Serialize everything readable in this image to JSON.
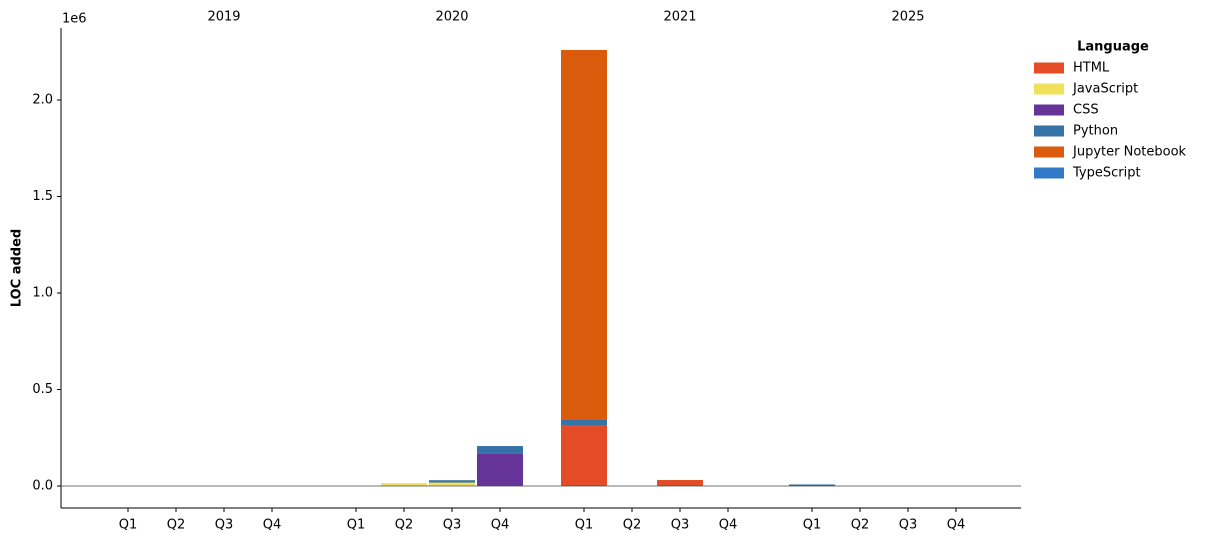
{
  "chart_data": {
    "type": "stacked_bar",
    "ylabel": "LOC added",
    "y_offset_label": "1e6",
    "categories": [
      "Q1",
      "Q2",
      "Q3",
      "Q4",
      "Q1",
      "Q2",
      "Q3",
      "Q4",
      "Q1",
      "Q2",
      "Q3",
      "Q4",
      "Q1",
      "Q2",
      "Q3",
      "Q4"
    ],
    "groups": [
      "2019",
      "2020",
      "2021",
      "2025"
    ],
    "legend_title": "Language",
    "legend_position": "outside-right",
    "series": [
      {
        "name": "HTML",
        "color": "#e34c26",
        "values": [
          0,
          0,
          0,
          0,
          0,
          0,
          0,
          0,
          316000,
          0,
          31000,
          0,
          0,
          0,
          0,
          0
        ]
      },
      {
        "name": "JavaScript",
        "color": "#f1e05a",
        "values": [
          0,
          0,
          0,
          0,
          0,
          15000,
          18000,
          0,
          0,
          0,
          0,
          0,
          0,
          0,
          0,
          0
        ]
      },
      {
        "name": "CSS",
        "color": "#663399",
        "values": [
          0,
          0,
          0,
          0,
          0,
          0,
          0,
          166000,
          0,
          0,
          0,
          0,
          0,
          0,
          0,
          0
        ]
      },
      {
        "name": "Python",
        "color": "#3572a5",
        "values": [
          0,
          0,
          0,
          0,
          0,
          0,
          12000,
          41000,
          26000,
          0,
          0,
          0,
          8000,
          0,
          0,
          0
        ]
      },
      {
        "name": "Jupyter Notebook",
        "color": "#da5b0b",
        "values": [
          0,
          0,
          0,
          0,
          0,
          0,
          0,
          0,
          1917000,
          0,
          0,
          0,
          0,
          0,
          0,
          0
        ]
      },
      {
        "name": "TypeScript",
        "color": "#3178c6",
        "values": [
          0,
          0,
          0,
          0,
          0,
          0,
          0,
          0,
          0,
          0,
          0,
          0,
          0,
          0,
          0,
          0
        ]
      }
    ],
    "ylim": [
      -114000,
      2373000
    ],
    "yticks": [
      {
        "value": 0,
        "label": "0.0"
      },
      {
        "value": 500000,
        "label": "0.5"
      },
      {
        "value": 1000000,
        "label": "1.0"
      },
      {
        "value": 1500000,
        "label": "1.5"
      },
      {
        "value": 2000000,
        "label": "2.0"
      }
    ]
  }
}
